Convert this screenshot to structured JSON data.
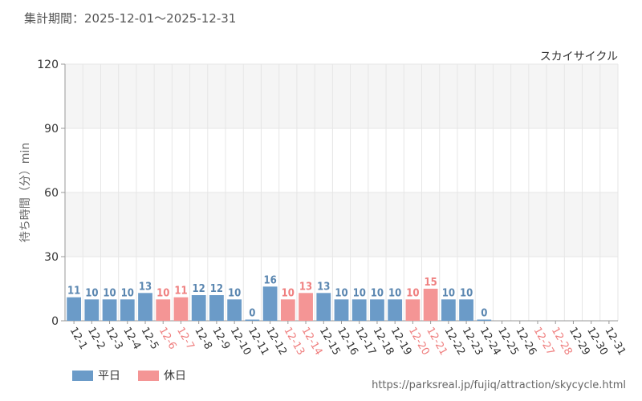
{
  "header": {
    "period": "集計期間：2025-12-01～2025-12-31"
  },
  "footer": {
    "source_url": "https://parksreal.jp/fujiq/attraction/skycycle.html"
  },
  "colors": {
    "weekday": "#6b9bc8",
    "holiday": "#f49595",
    "weekday_label": "#5a86b0",
    "holiday_label": "#ef7f7f"
  },
  "chart_data": {
    "type": "bar",
    "title": "スカイサイクル",
    "ylabel": "待ち時間（分）min",
    "ylim": [
      0,
      120
    ],
    "yticks": [
      "0",
      "30",
      "60",
      "90",
      "120"
    ],
    "grid": true,
    "legend_position": "bottom-left",
    "categories": [
      "12-1",
      "12-2",
      "12-3",
      "12-4",
      "12-5",
      "12-6",
      "12-7",
      "12-8",
      "12-9",
      "12-10",
      "12-11",
      "12-12",
      "12-13",
      "12-14",
      "12-15",
      "12-16",
      "12-17",
      "12-18",
      "12-19",
      "12-20",
      "12-21",
      "12-22",
      "12-23",
      "12-24",
      "12-25",
      "12-26",
      "12-27",
      "12-28",
      "12-29",
      "12-30",
      "12-31"
    ],
    "values": [
      11,
      10,
      10,
      10,
      13,
      10,
      11,
      12,
      12,
      10,
      0,
      16,
      10,
      13,
      13,
      10,
      10,
      10,
      10,
      10,
      15,
      10,
      10,
      0,
      null,
      null,
      null,
      null,
      null,
      null,
      null
    ],
    "day_type": [
      "weekday",
      "weekday",
      "weekday",
      "weekday",
      "weekday",
      "holiday",
      "holiday",
      "weekday",
      "weekday",
      "weekday",
      "weekday",
      "weekday",
      "holiday",
      "holiday",
      "weekday",
      "weekday",
      "weekday",
      "weekday",
      "weekday",
      "holiday",
      "holiday",
      "weekday",
      "weekday",
      "weekday",
      "weekday",
      "weekday",
      "holiday",
      "holiday",
      "weekday",
      "weekday",
      "weekday"
    ],
    "series": [
      {
        "key": "weekday",
        "name": "平日"
      },
      {
        "key": "holiday",
        "name": "休日"
      }
    ]
  }
}
